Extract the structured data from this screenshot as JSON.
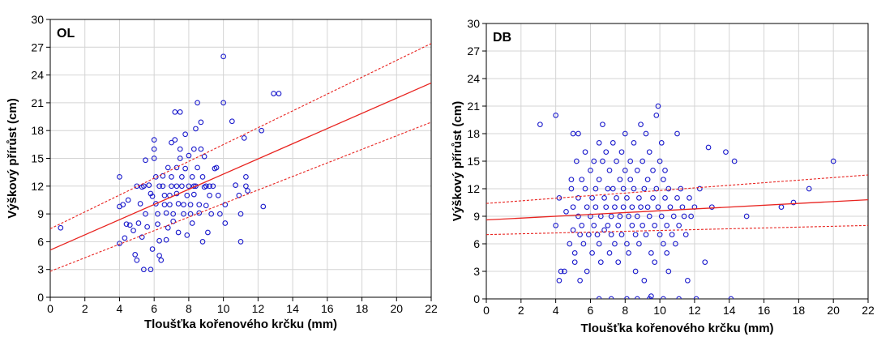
{
  "chart_data": [
    {
      "type": "scatter",
      "panel_label": "OL",
      "xlabel": "Tloušťka kořenového krčku (mm)",
      "ylabel": "Výškový přírůst (cm)",
      "xlim": [
        0,
        22
      ],
      "ylim": [
        0,
        30
      ],
      "xticks": [
        "0",
        "2",
        "4",
        "6",
        "8",
        "10",
        "12",
        "14",
        "16",
        "18",
        "20",
        "22"
      ],
      "yticks": [
        "0",
        "3",
        "6",
        "9",
        "12",
        "15",
        "18",
        "21",
        "24",
        "27",
        "30"
      ],
      "grid": true,
      "point_color": "#1a1acc",
      "line_color": "#e8231f",
      "regression": {
        "intercept": 5.1,
        "slope": 0.82
      },
      "ci_lower": [
        [
          0,
          2.8
        ],
        [
          22,
          18.9
        ]
      ],
      "ci_upper": [
        [
          0,
          7.4
        ],
        [
          22,
          27.4
        ]
      ],
      "points": [
        [
          0.6,
          7.5
        ],
        [
          4.0,
          13.0
        ],
        [
          4.0,
          9.8
        ],
        [
          4.2,
          10.0
        ],
        [
          4.4,
          7.9
        ],
        [
          4.6,
          7.8
        ],
        [
          4.0,
          5.8
        ],
        [
          4.3,
          6.4
        ],
        [
          4.5,
          10.5
        ],
        [
          4.8,
          7.2
        ],
        [
          4.9,
          4.6
        ],
        [
          5.0,
          4.0
        ],
        [
          5.1,
          8.0
        ],
        [
          5.2,
          10.1
        ],
        [
          5.3,
          6.5
        ],
        [
          5.0,
          12.0
        ],
        [
          5.4,
          12.0
        ],
        [
          5.5,
          9.0
        ],
        [
          5.6,
          7.6
        ],
        [
          5.4,
          3.0
        ],
        [
          5.8,
          3.0
        ],
        [
          5.9,
          5.2
        ],
        [
          5.5,
          14.8
        ],
        [
          5.7,
          12.1
        ],
        [
          5.8,
          11.2
        ],
        [
          5.9,
          10.9
        ],
        [
          6.0,
          17.0
        ],
        [
          6.0,
          16.0
        ],
        [
          6.1,
          13.0
        ],
        [
          6.1,
          10.1
        ],
        [
          6.2,
          9.0
        ],
        [
          6.2,
          7.9
        ],
        [
          6.3,
          6.1
        ],
        [
          6.3,
          4.5
        ],
        [
          6.0,
          15.0
        ],
        [
          6.5,
          13.1
        ],
        [
          6.5,
          12.0
        ],
        [
          6.6,
          11.0
        ],
        [
          6.6,
          10.0
        ],
        [
          6.7,
          9.1
        ],
        [
          6.7,
          6.2
        ],
        [
          6.4,
          4.0
        ],
        [
          6.8,
          14.0
        ],
        [
          6.8,
          7.5
        ],
        [
          6.9,
          11.0
        ],
        [
          6.9,
          10.0
        ],
        [
          7.0,
          16.7
        ],
        [
          7.0,
          13.0
        ],
        [
          7.0,
          12.0
        ],
        [
          7.1,
          9.0
        ],
        [
          7.1,
          8.2
        ],
        [
          7.2,
          20.0
        ],
        [
          7.2,
          17.0
        ],
        [
          7.3,
          14.0
        ],
        [
          7.3,
          11.2
        ],
        [
          7.4,
          10.1
        ],
        [
          7.4,
          7.0
        ],
        [
          7.5,
          20.0
        ],
        [
          7.5,
          16.0
        ],
        [
          7.5,
          15.0
        ],
        [
          7.6,
          13.0
        ],
        [
          7.6,
          12.0
        ],
        [
          7.7,
          10.0
        ],
        [
          7.7,
          9.0
        ],
        [
          7.8,
          17.6
        ],
        [
          7.8,
          13.9
        ],
        [
          7.9,
          11.0
        ],
        [
          7.9,
          6.7
        ],
        [
          8.0,
          15.3
        ],
        [
          8.0,
          12.0
        ],
        [
          8.1,
          10.0
        ],
        [
          8.1,
          9.0
        ],
        [
          8.2,
          13.0
        ],
        [
          8.2,
          8.0
        ],
        [
          8.3,
          16.0
        ],
        [
          8.3,
          11.1
        ],
        [
          8.4,
          18.2
        ],
        [
          8.4,
          12.0
        ],
        [
          8.5,
          21.0
        ],
        [
          8.5,
          14.0
        ],
        [
          8.6,
          10.0
        ],
        [
          8.6,
          9.1
        ],
        [
          8.7,
          18.9
        ],
        [
          8.7,
          16.0
        ],
        [
          8.8,
          13.0
        ],
        [
          8.8,
          6.0
        ],
        [
          8.9,
          15.2
        ],
        [
          8.9,
          11.9
        ],
        [
          9.0,
          12.0
        ],
        [
          9.0,
          9.9
        ],
        [
          9.1,
          7.0
        ],
        [
          9.2,
          11.0
        ],
        [
          9.3,
          9.0
        ],
        [
          9.4,
          12.0
        ],
        [
          9.5,
          13.9
        ],
        [
          9.6,
          14.0
        ],
        [
          9.7,
          11.0
        ],
        [
          9.8,
          9.0
        ],
        [
          10.0,
          26.0
        ],
        [
          10.0,
          21.0
        ],
        [
          10.1,
          10.0
        ],
        [
          10.1,
          8.0
        ],
        [
          10.5,
          19.0
        ],
        [
          10.7,
          12.1
        ],
        [
          10.9,
          11.0
        ],
        [
          11.0,
          9.0
        ],
        [
          11.0,
          6.0
        ],
        [
          11.2,
          17.2
        ],
        [
          11.3,
          13.0
        ],
        [
          11.3,
          12.0
        ],
        [
          11.4,
          11.5
        ],
        [
          12.2,
          18.0
        ],
        [
          12.3,
          9.8
        ],
        [
          12.9,
          22.0
        ],
        [
          13.2,
          22.0
        ],
        [
          5.3,
          11.9
        ],
        [
          6.3,
          12.0
        ],
        [
          7.3,
          12.0
        ],
        [
          8.3,
          12.0
        ],
        [
          9.2,
          12.0
        ]
      ]
    },
    {
      "type": "scatter",
      "panel_label": "DB",
      "xlabel": "Tloušťka kořenového krčku (mm)",
      "ylabel": "Výškový přírůst (cm)",
      "xlim": [
        0,
        22
      ],
      "ylim": [
        0,
        30
      ],
      "xticks": [
        "0",
        "2",
        "4",
        "6",
        "8",
        "10",
        "12",
        "14",
        "16",
        "18",
        "20",
        "22"
      ],
      "yticks": [
        "0",
        "3",
        "6",
        "9",
        "12",
        "15",
        "18",
        "21",
        "24",
        "27",
        "30"
      ],
      "grid": true,
      "point_color": "#1a1acc",
      "line_color": "#e8231f",
      "regression": {
        "intercept": 8.6,
        "slope": 0.1
      },
      "ci_lower": [
        [
          0,
          7.0
        ],
        [
          22,
          8.0
        ]
      ],
      "ci_upper": [
        [
          0,
          10.4
        ],
        [
          22,
          13.5
        ]
      ],
      "points": [
        [
          3.1,
          19.0
        ],
        [
          4.0,
          20.0
        ],
        [
          4.0,
          8.0
        ],
        [
          4.2,
          11.0
        ],
        [
          4.3,
          3.0
        ],
        [
          4.2,
          2.0
        ],
        [
          4.5,
          3.0
        ],
        [
          4.6,
          9.5
        ],
        [
          4.8,
          6.0
        ],
        [
          4.9,
          13.0
        ],
        [
          4.9,
          12.0
        ],
        [
          5.0,
          18.0
        ],
        [
          5.0,
          10.0
        ],
        [
          5.0,
          7.5
        ],
        [
          5.1,
          5.0
        ],
        [
          5.1,
          4.0
        ],
        [
          5.2,
          15.0
        ],
        [
          5.3,
          18.0
        ],
        [
          5.3,
          11.0
        ],
        [
          5.3,
          9.0
        ],
        [
          5.4,
          7.0
        ],
        [
          5.4,
          2.0
        ],
        [
          5.5,
          13.0
        ],
        [
          5.5,
          8.0
        ],
        [
          5.6,
          6.0
        ],
        [
          5.7,
          16.0
        ],
        [
          5.7,
          12.0
        ],
        [
          5.8,
          10.0
        ],
        [
          5.8,
          3.0
        ],
        [
          5.9,
          7.0
        ],
        [
          6.0,
          14.0
        ],
        [
          6.0,
          9.0
        ],
        [
          6.1,
          11.0
        ],
        [
          6.1,
          5.0
        ],
        [
          6.2,
          15.0
        ],
        [
          6.2,
          8.0
        ],
        [
          6.3,
          12.0
        ],
        [
          6.3,
          10.0
        ],
        [
          6.4,
          7.0
        ],
        [
          6.5,
          17.0
        ],
        [
          6.5,
          13.0
        ],
        [
          6.5,
          6.0
        ],
        [
          6.6,
          9.0
        ],
        [
          6.6,
          4.0
        ],
        [
          6.7,
          19.0
        ],
        [
          6.7,
          15.0
        ],
        [
          6.8,
          11.0
        ],
        [
          6.8,
          7.5
        ],
        [
          6.9,
          16.0
        ],
        [
          6.9,
          10.0
        ],
        [
          7.0,
          12.0
        ],
        [
          7.0,
          8.0
        ],
        [
          7.1,
          5.0
        ],
        [
          7.1,
          14.0
        ],
        [
          7.2,
          9.0
        ],
        [
          7.2,
          7.0
        ],
        [
          7.3,
          17.0
        ],
        [
          7.3,
          12.0
        ],
        [
          7.4,
          10.0
        ],
        [
          7.4,
          6.0
        ],
        [
          7.5,
          15.0
        ],
        [
          7.5,
          11.0
        ],
        [
          7.6,
          8.0
        ],
        [
          7.6,
          4.0
        ],
        [
          7.7,
          13.0
        ],
        [
          7.7,
          9.0
        ],
        [
          7.8,
          16.0
        ],
        [
          7.8,
          7.0
        ],
        [
          7.9,
          12.0
        ],
        [
          7.9,
          10.0
        ],
        [
          8.0,
          18.0
        ],
        [
          8.0,
          14.0
        ],
        [
          8.1,
          11.0
        ],
        [
          8.1,
          6.0
        ],
        [
          8.2,
          9.0
        ],
        [
          8.2,
          5.0
        ],
        [
          8.3,
          15.0
        ],
        [
          8.3,
          13.0
        ],
        [
          8.4,
          10.0
        ],
        [
          8.4,
          8.0
        ],
        [
          8.5,
          17.0
        ],
        [
          8.5,
          12.0
        ],
        [
          8.6,
          7.0
        ],
        [
          8.6,
          3.0
        ],
        [
          8.7,
          14.0
        ],
        [
          8.7,
          9.0
        ],
        [
          8.8,
          11.0
        ],
        [
          8.8,
          6.0
        ],
        [
          8.9,
          19.0
        ],
        [
          8.9,
          10.0
        ],
        [
          9.0,
          15.0
        ],
        [
          9.0,
          8.0
        ],
        [
          9.1,
          12.0
        ],
        [
          9.1,
          2.0
        ],
        [
          9.2,
          18.0
        ],
        [
          9.2,
          7.0
        ],
        [
          9.3,
          13.0
        ],
        [
          9.3,
          10.0
        ],
        [
          9.4,
          16.0
        ],
        [
          9.4,
          9.0
        ],
        [
          9.5,
          5.0
        ],
        [
          9.5,
          0.3
        ],
        [
          9.6,
          11.0
        ],
        [
          9.6,
          14.0
        ],
        [
          9.7,
          8.0
        ],
        [
          9.7,
          4.0
        ],
        [
          9.8,
          20.0
        ],
        [
          9.8,
          12.0
        ],
        [
          9.9,
          21.0
        ],
        [
          9.9,
          10.0
        ],
        [
          10.0,
          7.0
        ],
        [
          10.0,
          15.0
        ],
        [
          10.1,
          17.0
        ],
        [
          10.1,
          9.0
        ],
        [
          10.2,
          13.0
        ],
        [
          10.2,
          6.0
        ],
        [
          10.3,
          11.0
        ],
        [
          10.3,
          14.0
        ],
        [
          10.4,
          8.0
        ],
        [
          10.4,
          5.0
        ],
        [
          10.5,
          12.0
        ],
        [
          10.5,
          3.0
        ],
        [
          10.6,
          10.0
        ],
        [
          10.7,
          7.0
        ],
        [
          10.8,
          9.0
        ],
        [
          10.9,
          6.0
        ],
        [
          11.0,
          18.0
        ],
        [
          11.0,
          11.0
        ],
        [
          11.1,
          8.0
        ],
        [
          11.2,
          12.0
        ],
        [
          11.3,
          10.0
        ],
        [
          11.4,
          9.0
        ],
        [
          11.5,
          7.0
        ],
        [
          11.6,
          2.0
        ],
        [
          11.7,
          11.0
        ],
        [
          11.8,
          9.0
        ],
        [
          12.0,
          10.0
        ],
        [
          12.3,
          12.0
        ],
        [
          12.6,
          4.0
        ],
        [
          12.8,
          16.5
        ],
        [
          13.0,
          10.0
        ],
        [
          13.8,
          16.0
        ],
        [
          14.3,
          15.0
        ],
        [
          15.0,
          9.0
        ],
        [
          17.0,
          10.0
        ],
        [
          17.7,
          10.5
        ],
        [
          18.6,
          12.0
        ],
        [
          20.0,
          15.0
        ],
        [
          6.5,
          0
        ],
        [
          7.2,
          0
        ],
        [
          8.1,
          0
        ],
        [
          8.7,
          0
        ],
        [
          9.4,
          0
        ],
        [
          10.2,
          0
        ],
        [
          11.1,
          0
        ],
        [
          12.1,
          0
        ],
        [
          14.1,
          0
        ]
      ]
    }
  ]
}
